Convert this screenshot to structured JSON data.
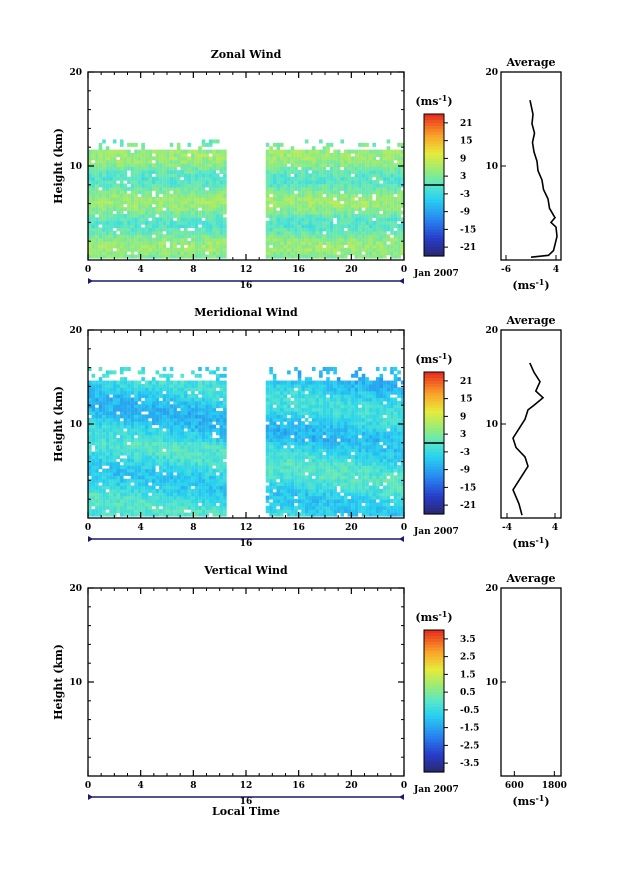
{
  "chart_data": [
    {
      "type": "heatmap",
      "title": "Zonal Wind",
      "ylabel": "Height (km)",
      "xlabel": "",
      "x_ticks": [
        "0",
        "4",
        "8",
        "12",
        "16",
        "20",
        "0"
      ],
      "y_ticks": [
        "20",
        "10"
      ],
      "date_tick": "16",
      "date_label": "Jan 2007",
      "xlim": [
        0,
        24
      ],
      "ylim": [
        0,
        20
      ],
      "colorbar": {
        "unit_prefix": "(ms",
        "unit_exp": "-1",
        "unit_suffix": ")",
        "ticks": [
          "21",
          "15",
          "9",
          "3",
          "-3",
          "-9",
          "-15",
          "-21"
        ],
        "range": [
          -24,
          24
        ],
        "marker": 0
      },
      "data_gap_hours": [
        10.3,
        13.3
      ],
      "data_top_km": 11.5,
      "average_profile": {
        "title": "Average",
        "x_ticks": [
          "-6",
          "4"
        ],
        "xlim": [
          -7,
          5
        ],
        "y_ticks": [
          "20",
          "10"
        ],
        "xlabel_prefix": "(ms",
        "xlabel_exp": "-1",
        "xlabel_suffix": ")",
        "points": [
          [
            -1,
            0.3
          ],
          [
            2.5,
            0.5
          ],
          [
            3.5,
            1.0
          ],
          [
            4.2,
            2.5
          ],
          [
            4.0,
            3.5
          ],
          [
            3.0,
            4.0
          ],
          [
            3.8,
            4.5
          ],
          [
            2.7,
            5.5
          ],
          [
            2.4,
            6.5
          ],
          [
            1.5,
            7.5
          ],
          [
            1.2,
            8.5
          ],
          [
            0.4,
            9.5
          ],
          [
            0.2,
            10.5
          ],
          [
            -0.4,
            11.5
          ],
          [
            -0.7,
            12.5
          ],
          [
            -0.3,
            13.5
          ],
          [
            -0.8,
            14.5
          ],
          [
            -0.6,
            15.5
          ],
          [
            -1.2,
            17
          ]
        ]
      }
    },
    {
      "type": "heatmap",
      "title": "Meridional Wind",
      "ylabel": "Height (km)",
      "xlabel": "",
      "x_ticks": [
        "0",
        "4",
        "8",
        "12",
        "16",
        "20",
        "0"
      ],
      "y_ticks": [
        "20",
        "10"
      ],
      "date_tick": "16",
      "date_label": "Jan 2007",
      "xlim": [
        0,
        24
      ],
      "ylim": [
        0,
        20
      ],
      "colorbar": {
        "unit_prefix": "(ms",
        "unit_exp": "-1",
        "unit_suffix": ")",
        "ticks": [
          "21",
          "15",
          "9",
          "3",
          "-3",
          "-9",
          "-15",
          "-21"
        ],
        "range": [
          -24,
          24
        ],
        "marker": 0
      },
      "data_gap_hours": [
        10.3,
        13.3
      ],
      "data_top_km": 14.5,
      "average_profile": {
        "title": "Average",
        "x_ticks": [
          "-4",
          "4"
        ],
        "xlim": [
          -5,
          5
        ],
        "y_ticks": [
          "20",
          "10"
        ],
        "xlabel_prefix": "(ms",
        "xlabel_exp": "-1",
        "xlabel_suffix": ")",
        "points": [
          [
            -1.5,
            0.3
          ],
          [
            -2.0,
            1.5
          ],
          [
            -3.0,
            3.0
          ],
          [
            -1.5,
            4.5
          ],
          [
            -0.5,
            5.5
          ],
          [
            -1.0,
            6.5
          ],
          [
            -2.5,
            7.5
          ],
          [
            -3.0,
            8.5
          ],
          [
            -2.0,
            9.5
          ],
          [
            -1.0,
            10.5
          ],
          [
            -0.5,
            11.5
          ],
          [
            0.5,
            12.0
          ],
          [
            2.0,
            12.8
          ],
          [
            0.8,
            13.5
          ],
          [
            1.5,
            14.5
          ],
          [
            0.5,
            15.5
          ],
          [
            -0.2,
            16.5
          ]
        ]
      }
    },
    {
      "type": "heatmap",
      "title": "Vertical Wind",
      "ylabel": "Height (km)",
      "xlabel": "Local Time",
      "x_ticks": [
        "0",
        "4",
        "8",
        "12",
        "16",
        "20",
        "0"
      ],
      "y_ticks": [
        "20",
        "10"
      ],
      "date_tick": "16",
      "date_label": "Jan 2007",
      "xlim": [
        0,
        24
      ],
      "ylim": [
        0,
        20
      ],
      "colorbar": {
        "unit_prefix": "(ms",
        "unit_exp": "-1",
        "unit_suffix": ")",
        "ticks": [
          "3.5",
          "2.5",
          "1.5",
          "0.5",
          "-0.5",
          "-1.5",
          "-2.5",
          "-3.5"
        ],
        "range": [
          -4,
          4
        ],
        "marker": null
      },
      "data_gap_hours": null,
      "data_top_km": 0,
      "average_profile": {
        "title": "Average",
        "x_ticks": [
          "600",
          "1800"
        ],
        "xlim": [
          200,
          2000
        ],
        "y_ticks": [
          "20",
          "10"
        ],
        "xlabel_prefix": "(ms",
        "xlabel_exp": "-1",
        "xlabel_suffix": ")",
        "points": []
      }
    }
  ]
}
